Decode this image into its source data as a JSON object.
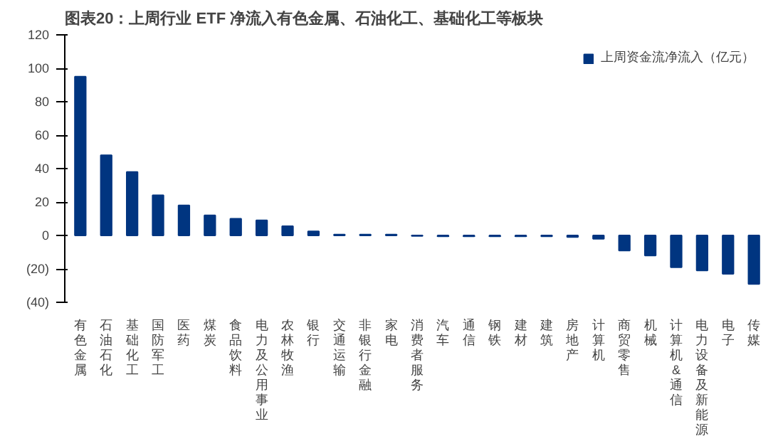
{
  "chart_data": {
    "type": "bar",
    "title": "图表20：上周行业 ETF 净流入有色金属、石油化工、基础化工等板块",
    "categories": [
      "有色金属",
      "石油石化",
      "基础化工",
      "国防军工",
      "医药",
      "煤炭",
      "食品饮料",
      "电力及公用事业",
      "农林牧渔",
      "银行",
      "交通运输",
      "非银行金融",
      "家电",
      "消费者服务",
      "汽车",
      "通信",
      "钢铁",
      "建材",
      "建筑",
      "房地产",
      "计算机",
      "商贸零售",
      "机械",
      "计算机&通信",
      "电力设备及新能源",
      "电子",
      "传媒"
    ],
    "series": [
      {
        "name": "上周资金流净流入（亿元）",
        "color": "#003580",
        "values": [
          95,
          48,
          38,
          24,
          18,
          12,
          10,
          9,
          5.5,
          2.5,
          0.5,
          0.5,
          0.5,
          -0.3,
          -0.5,
          -0.5,
          -0.5,
          -0.5,
          -0.5,
          -1,
          -2,
          -9,
          -12,
          -19,
          -21,
          -23,
          -29
        ]
      }
    ],
    "ylim": [
      -40,
      120
    ],
    "yticks": [
      {
        "value": -40,
        "label": "(40)"
      },
      {
        "value": -20,
        "label": "(20)"
      },
      0,
      20,
      40,
      60,
      80,
      100,
      120
    ],
    "grid": false,
    "legend": "top right"
  }
}
